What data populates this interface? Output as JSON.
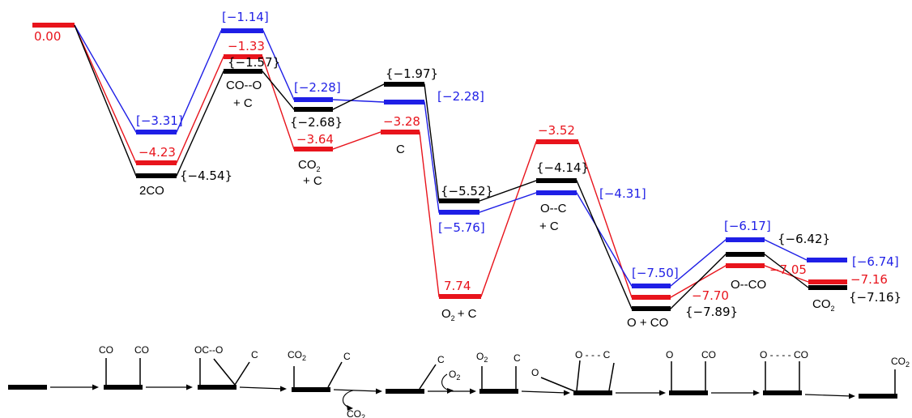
{
  "colors": {
    "red": "#e8141c",
    "blue": "#1f1fe6",
    "black": "#000000"
  },
  "chart_data": {
    "type": "energy-level-diagram",
    "red_values": [
      "0.00",
      "−4.23",
      "−1.33",
      "−3.64",
      "−3.28",
      "7.74",
      "−3.52",
      "−7.70",
      "−7.05",
      "−7.16"
    ],
    "blue_values": [
      "[−3.31]",
      "[−1.14]",
      "[−2.28]",
      "−2.28]",
      "[−5.76]",
      "[−4.31]",
      "[−7.50]",
      "[−6.17]",
      "[−6.74]"
    ],
    "blue_value_fragment": "[",
    "black_values": [
      "{−4.54}",
      "{−1.57}",
      "{−2.68}",
      "{−1.97}",
      "{−5.52}",
      "{−4.14}",
      "{−7.89}",
      "{−6.42}",
      "{−7.16}"
    ],
    "species": {
      "s2co": "2CO",
      "coo": "CO--O",
      "plus_c": "+ C",
      "co2_main": "CO",
      "co2_sub": "2",
      "c": "C",
      "o2_main": "O",
      "o2_sub": "2",
      "o2_rest": "+ C",
      "oc": "O--C",
      "oplusco": "O + CO",
      "oco": "O--CO",
      "co2f_main": "CO",
      "co2f_sub": "2"
    },
    "scheme": {
      "co": "CO",
      "oc_o": "OC--O",
      "c": "C",
      "o": "O",
      "o_dashes_c": "O - - - C",
      "o_dashes_co": "O - - - - CO",
      "co2_main": "CO",
      "co2_sub": "2",
      "o2_main": "O",
      "o2_sub": "2"
    }
  }
}
